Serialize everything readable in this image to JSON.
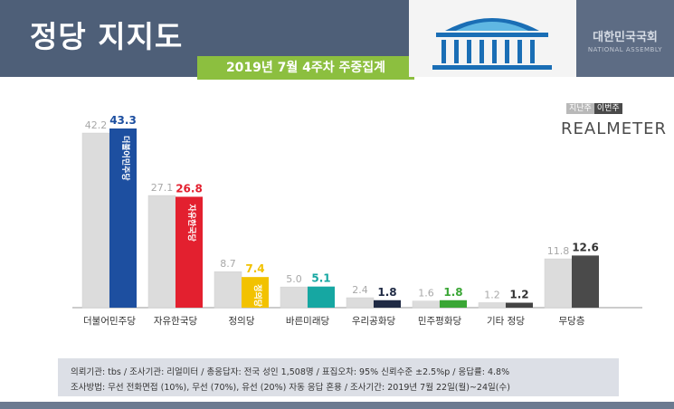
{
  "header": {
    "title": "정당 지지도",
    "subtitle": "2019년 7월 4주차 주중집계",
    "assembly_name": "대한민국국회",
    "assembly_name_en": "NATIONAL ASSEMBLY"
  },
  "legend": {
    "previous": "지난주",
    "current": "이번주"
  },
  "brand": "REALMETER",
  "colors": {
    "header": "#4e5f78",
    "subtitle_bg": "#8cbf3f",
    "previous_bar": "#d9d9d9"
  },
  "chart_data": {
    "type": "bar",
    "title": "정당 지지도",
    "subtitle": "2019년 7월 4주차 주중집계",
    "categories": [
      "더불어민주당",
      "자유한국당",
      "정의당",
      "바른미래당",
      "우리공화당",
      "민주평화당",
      "기타 정당",
      "무당층"
    ],
    "series": [
      {
        "name": "지난주",
        "values": [
          42.2,
          27.1,
          8.7,
          5.0,
          2.4,
          1.6,
          1.2,
          11.8
        ]
      },
      {
        "name": "이번주",
        "values": [
          43.3,
          26.8,
          7.4,
          5.1,
          1.8,
          1.8,
          1.2,
          12.6
        ]
      }
    ],
    "value_labels": {
      "previous": [
        "42.2",
        "27.1",
        "8.7",
        "5.0",
        "2.4",
        "1.6",
        "1.2",
        "11.8"
      ],
      "current": [
        "43.3",
        "26.8",
        "7.4",
        "5.1",
        "1.8",
        "1.8",
        "1.2",
        "12.6"
      ]
    },
    "current_colors": [
      "#1d4fa0",
      "#e3202f",
      "#f2c200",
      "#16a7a2",
      "#1f2a44",
      "#3aa635",
      "#444444",
      "#4a4a4a"
    ],
    "current_label_colors": [
      "#1d4fa0",
      "#e3202f",
      "#f2c200",
      "#16a7a2",
      "#1f2a44",
      "#3aa635",
      "#333333",
      "#333333"
    ],
    "party_logo_text": [
      "더불어민주당",
      "자유한국당",
      "정의당",
      "",
      "",
      "",
      "",
      ""
    ],
    "ylim": [
      0,
      45
    ],
    "grid": false,
    "legend_position": "top-right"
  },
  "footer": {
    "line1": "의뢰기관:  tbs  /  조사기관:  리얼미터  /  총응답자:  전국 성인 1,508명  /  표집오차:  95% 신뢰수준 ±2.5%p  /  응답률:  4.8%",
    "line2": "조사방법:  무선 전화면접 (10%), 무선 (70%), 유선 (20%) 자동 응답 혼용  /  조사기간:  2019년 7월 22일(월)~24일(수)"
  }
}
